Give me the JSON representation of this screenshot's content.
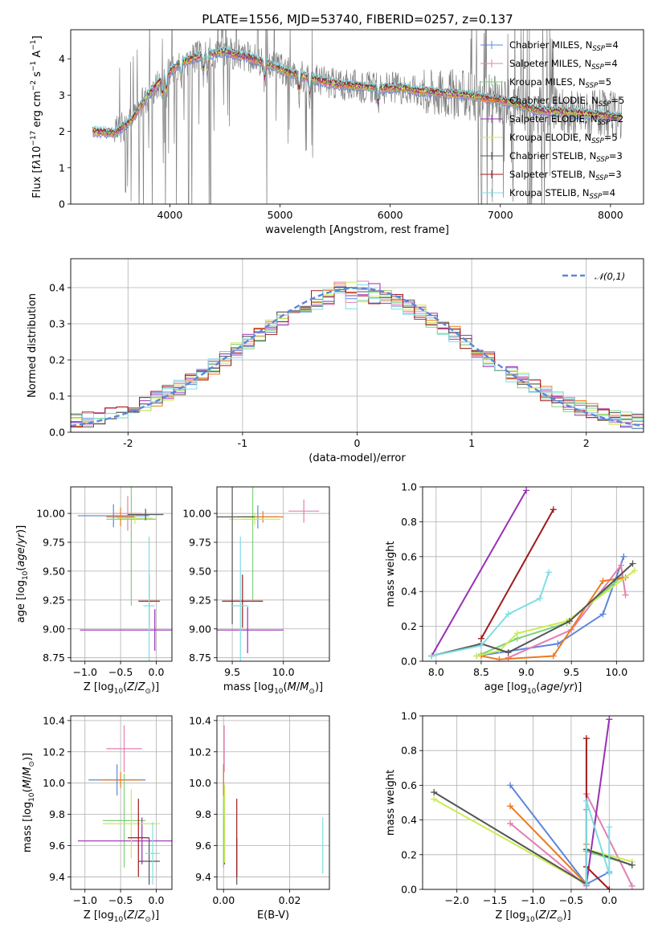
{
  "figure": {
    "title": "PLATE=1556, MJD=53740, FIBERID=0257, z=0.137"
  },
  "colors": {
    "chabrier_miles": "#5b86db",
    "salpeter_miles": "#e37fb0",
    "kroupa_miles": "#7fd17a",
    "chabrier_elodie": "#ec7a1e",
    "salpeter_elodie": "#9a2fb5",
    "kroupa_elodie": "#c9ec52",
    "chabrier_stelib": "#555555",
    "salpeter_stelib": "#a01a1a",
    "kroupa_stelib": "#7fdde3",
    "data": "#808080",
    "normal": "#5b86db",
    "fit_line_dark": "#5a7a5a"
  },
  "chart_data": [
    {
      "id": "spectrum",
      "type": "line",
      "title": "PLATE=1556, MJD=53740, FIBERID=0257, z=0.137",
      "xlabel": "wavelength [Angstrom, rest frame]",
      "ylabel_html": "Flux [f<tspan font-style='italic'>λ</tspan>10<tspan dy='-6' font-size='9'>−17</tspan><tspan dy='6'> erg cm</tspan><tspan dy='-6' font-size='9'>−2</tspan><tspan dy='6'> s</tspan><tspan dy='-6' font-size='9'>−1</tspan><tspan dy='6'> A</tspan><tspan dy='-6' font-size='9'>−1</tspan><tspan dy='6'>]</tspan>",
      "xlim": [
        3100,
        8300
      ],
      "ylim": [
        0,
        4.8
      ],
      "xticks": [
        4000,
        5000,
        6000,
        7000,
        8000
      ],
      "yticks": [
        0,
        1,
        2,
        3,
        4
      ],
      "continuum": {
        "x": [
          3300,
          3500,
          3650,
          3800,
          3950,
          4100,
          4300,
          4500,
          4700,
          4900,
          5100,
          5300,
          5500,
          5700,
          5900,
          6100,
          6300,
          6500,
          6700,
          6900,
          7100,
          7300,
          7500,
          7700,
          7900,
          8100
        ],
        "y": [
          2.0,
          1.95,
          2.3,
          3.0,
          3.5,
          3.9,
          4.1,
          4.2,
          4.05,
          3.85,
          3.6,
          3.45,
          3.3,
          3.25,
          3.2,
          3.2,
          3.1,
          3.05,
          3.0,
          2.9,
          2.8,
          2.6,
          2.55,
          2.5,
          2.45,
          2.4
        ]
      },
      "legend": [
        {
          "name": "Chabrier MILES",
          "nssp": "4",
          "color": "chabrier_miles"
        },
        {
          "name": "Salpeter MILES",
          "nssp": "4",
          "color": "salpeter_miles"
        },
        {
          "name": "Kroupa MILES",
          "nssp": "5",
          "color": "kroupa_miles"
        },
        {
          "name": "Chabrier ELODIE",
          "nssp": "5",
          "color": "chabrier_elodie"
        },
        {
          "name": "Salpeter ELODIE",
          "nssp": "2",
          "color": "salpeter_elodie"
        },
        {
          "name": "Kroupa ELODIE",
          "nssp": "5",
          "color": "kroupa_elodie"
        },
        {
          "name": "Chabrier STELIB",
          "nssp": "3",
          "color": "chabrier_stelib"
        },
        {
          "name": "Salpeter STELIB",
          "nssp": "3",
          "color": "salpeter_stelib"
        },
        {
          "name": "Kroupa STELIB",
          "nssp": "4",
          "color": "kroupa_stelib"
        }
      ],
      "legend_position": "top-right"
    },
    {
      "id": "residuals",
      "type": "histogram",
      "xlabel": "(data-model)/error",
      "ylabel": "Normed distribution",
      "xlim": [
        -2.5,
        2.5
      ],
      "ylim": [
        0,
        0.48
      ],
      "xticks": [
        -2,
        -1,
        0,
        1,
        2
      ],
      "yticks": [
        0.0,
        0.1,
        0.2,
        0.3,
        0.4
      ],
      "ytick_labels": [
        "0.0",
        "0.1",
        "0.2",
        "0.3",
        "0.4"
      ],
      "bin_width": 0.1,
      "reference": {
        "name": "𝒩(0,1)",
        "mean": 0,
        "sigma": 1
      },
      "legend_position": "top-right",
      "grid": true
    },
    {
      "id": "z_age",
      "type": "errorbar",
      "xlabel_html": "Z [log<tspan dy='4' font-size='9'>10</tspan><tspan dy='-4'>(</tspan><tspan font-style='italic'>Z</tspan>/<tspan font-style='italic'>Z</tspan><tspan dy='4' font-size='9'>⊙</tspan><tspan dy='-4'>)]</tspan>",
      "ylabel_html": "age  [log<tspan dy='4' font-size='9'>10</tspan><tspan dy='-4'>(</tspan><tspan font-style='italic'>age</tspan>/<tspan font-style='italic'>yr</tspan>)]",
      "xlim": [
        -1.2,
        0.22
      ],
      "ylim": [
        8.72,
        10.23
      ],
      "xticks": [
        -1.0,
        -0.5,
        0.0
      ],
      "xtick_labels": [
        "−1.0",
        "−0.5",
        "0.0"
      ],
      "yticks": [
        8.75,
        9.0,
        9.25,
        9.5,
        9.75,
        10.0
      ],
      "ytick_labels": [
        "8.75",
        "9.00",
        "9.25",
        "9.50",
        "9.75",
        "10.00"
      ],
      "points": [
        {
          "color": "chabrier_miles",
          "x": -0.6,
          "y": 9.98,
          "xerr": 0.5,
          "yerr": 0.1
        },
        {
          "color": "salpeter_miles",
          "x": -0.4,
          "y": 10.0,
          "xerr": 0.2,
          "yerr": 0.15
        },
        {
          "color": "kroupa_miles",
          "x": -0.35,
          "y": 9.95,
          "xerr": 0.35,
          "yerr": 0.75
        },
        {
          "color": "chabrier_elodie",
          "x": -0.5,
          "y": 9.97,
          "xerr": 0.2,
          "yerr": 0.08
        },
        {
          "color": "salpeter_elodie",
          "x": -0.02,
          "y": 8.99,
          "xerr": 1.05,
          "yerr": 0.18
        },
        {
          "color": "kroupa_elodie",
          "x": -0.3,
          "y": 9.96,
          "xerr": 0.25,
          "yerr": 0.05
        },
        {
          "color": "chabrier_stelib",
          "x": -0.15,
          "y": 9.99,
          "xerr": 0.25,
          "yerr": 0.05
        },
        {
          "color": "salpeter_stelib",
          "x": -0.1,
          "y": 9.24,
          "xerr": 0.15,
          "yerr": 0.23
        },
        {
          "color": "kroupa_stelib",
          "x": -0.1,
          "y": 9.2,
          "xerr": 0.08,
          "yerr": 0.6
        }
      ]
    },
    {
      "id": "mass_age",
      "type": "errorbar",
      "xlabel_html": "mass [log<tspan dy='4' font-size='9'>10</tspan><tspan dy='-4'>(</tspan><tspan font-style='italic'>M</tspan>/<tspan font-style='italic'>M</tspan><tspan dy='4' font-size='9'>⊙</tspan><tspan dy='-4'>)]</tspan>",
      "xlim": [
        9.35,
        10.45
      ],
      "ylim": [
        8.72,
        10.23
      ],
      "xticks": [
        9.5,
        10.0
      ],
      "xtick_labels": [
        "9.5",
        "10.0"
      ],
      "yticks": [
        8.75,
        9.0,
        9.25,
        9.5,
        9.75,
        10.0
      ],
      "ytick_labels": [
        "8.75",
        "9.00",
        "9.25",
        "9.50",
        "9.75",
        "10.00"
      ],
      "points": [
        {
          "color": "chabrier_miles",
          "x": 9.75,
          "y": 9.97,
          "xerr": 0.2,
          "yerr": 0.1
        },
        {
          "color": "salpeter_miles",
          "x": 10.2,
          "y": 10.02,
          "xerr": 0.15,
          "yerr": 0.1
        },
        {
          "color": "kroupa_miles",
          "x": 9.7,
          "y": 9.95,
          "xerr": 0.1,
          "yerr": 0.7
        },
        {
          "color": "chabrier_elodie",
          "x": 9.8,
          "y": 9.97,
          "xerr": 0.2,
          "yerr": 0.05
        },
        {
          "color": "salpeter_elodie",
          "x": 9.65,
          "y": 8.99,
          "xerr": 0.35,
          "yerr": 0.2
        },
        {
          "color": "kroupa_elodie",
          "x": 9.72,
          "y": 9.95,
          "xerr": 0.25,
          "yerr": 0.05
        },
        {
          "color": "chabrier_stelib",
          "x": 9.5,
          "y": 9.97,
          "xerr": 0.22,
          "yerr": 0.93
        },
        {
          "color": "salpeter_stelib",
          "x": 9.6,
          "y": 9.24,
          "xerr": 0.2,
          "yerr": 0.23
        },
        {
          "color": "kroupa_stelib",
          "x": 9.58,
          "y": 9.2,
          "xerr": 0.08,
          "yerr": 0.6
        }
      ]
    },
    {
      "id": "age_weight",
      "type": "line",
      "xlabel_html": "age  [log<tspan dy='4' font-size='9'>10</tspan><tspan dy='-4'>(</tspan><tspan font-style='italic'>age</tspan>/<tspan font-style='italic'>yr</tspan>)]",
      "ylabel": "mass weight",
      "xlim": [
        7.85,
        10.3
      ],
      "ylim": [
        0,
        1.0
      ],
      "xticks": [
        8.0,
        8.5,
        9.0,
        9.5,
        10.0
      ],
      "xtick_labels": [
        "8.0",
        "8.5",
        "9.0",
        "9.5",
        "10.0"
      ],
      "yticks": [
        0.0,
        0.2,
        0.4,
        0.6,
        0.8,
        1.0
      ],
      "ytick_labels": [
        "0.0",
        "0.2",
        "0.4",
        "0.6",
        "0.8",
        "1.0"
      ],
      "series": [
        {
          "color": "chabrier_miles",
          "x": [
            8.45,
            9.35,
            9.85,
            10.08
          ],
          "y": [
            0.03,
            0.1,
            0.27,
            0.6
          ]
        },
        {
          "color": "salpeter_miles",
          "x": [
            8.8,
            9.5,
            10.05,
            10.1
          ],
          "y": [
            0.02,
            0.18,
            0.55,
            0.38
          ]
        },
        {
          "color": "kroupa_miles",
          "x": [
            8.5,
            8.9,
            9.45,
            10.05
          ],
          "y": [
            0.04,
            0.13,
            0.22,
            0.48
          ]
        },
        {
          "color": "chabrier_elodie",
          "x": [
            8.5,
            8.7,
            9.3,
            9.85,
            10.1
          ],
          "y": [
            0.03,
            0.01,
            0.03,
            0.46,
            0.48
          ]
        },
        {
          "color": "salpeter_elodie",
          "x": [
            7.95,
            9.0
          ],
          "y": [
            0.03,
            0.98
          ]
        },
        {
          "color": "kroupa_elodie",
          "x": [
            8.45,
            8.7,
            8.9,
            9.45,
            10.2
          ],
          "y": [
            0.03,
            0.06,
            0.16,
            0.23,
            0.52
          ]
        },
        {
          "color": "chabrier_stelib",
          "x": [
            7.95,
            8.5,
            8.8,
            9.48,
            10.18
          ],
          "y": [
            0.03,
            0.1,
            0.05,
            0.23,
            0.56
          ]
        },
        {
          "color": "salpeter_stelib",
          "x": [
            8.5,
            9.3
          ],
          "y": [
            0.13,
            0.87
          ]
        },
        {
          "color": "kroupa_stelib",
          "x": [
            7.95,
            8.5,
            8.8,
            9.15,
            9.25
          ],
          "y": [
            0.03,
            0.09,
            0.27,
            0.36,
            0.51
          ]
        }
      ],
      "grid": true
    },
    {
      "id": "z_mass",
      "type": "errorbar",
      "xlabel_html": "Z [log<tspan dy='4' font-size='9'>10</tspan><tspan dy='-4'>(</tspan><tspan font-style='italic'>Z</tspan>/<tspan font-style='italic'>Z</tspan><tspan dy='4' font-size='9'>⊙</tspan><tspan dy='-4'>)]</tspan>",
      "ylabel_html": "mass [log<tspan dy='4' font-size='9'>10</tspan><tspan dy='-4'>(</tspan><tspan font-style='italic'>M</tspan>/<tspan font-style='italic'>M</tspan><tspan dy='4' font-size='9'>⊙</tspan><tspan dy='-4'>)]</tspan>",
      "xlim": [
        -1.2,
        0.22
      ],
      "ylim": [
        9.32,
        10.43
      ],
      "xticks": [
        -1.0,
        -0.5,
        0.0
      ],
      "xtick_labels": [
        "−1.0",
        "−0.5",
        "0.0"
      ],
      "yticks": [
        9.4,
        9.6,
        9.8,
        10.0,
        10.2,
        10.4
      ],
      "ytick_labels": [
        "9.4",
        "9.6",
        "9.8",
        "10.0",
        "10.2",
        "10.4"
      ],
      "points": [
        {
          "color": "chabrier_miles",
          "x": -0.55,
          "y": 10.02,
          "xerr": 0.4,
          "yerr": 0.1
        },
        {
          "color": "salpeter_miles",
          "x": -0.45,
          "y": 10.22,
          "xerr": 0.25,
          "yerr": 0.15
        },
        {
          "color": "kroupa_miles",
          "x": -0.45,
          "y": 9.76,
          "xerr": 0.3,
          "yerr": 0.3
        },
        {
          "color": "chabrier_elodie",
          "x": -0.5,
          "y": 10.02,
          "xerr": 0.3,
          "yerr": 0.05
        },
        {
          "color": "salpeter_elodie",
          "x": -0.2,
          "y": 9.63,
          "xerr": 0.9,
          "yerr": 0.15
        },
        {
          "color": "kroupa_elodie",
          "x": -0.35,
          "y": 9.74,
          "xerr": 0.4,
          "yerr": 0.22
        },
        {
          "color": "chabrier_stelib",
          "x": -0.1,
          "y": 9.5,
          "xerr": 0.15,
          "yerr": 0.15
        },
        {
          "color": "salpeter_stelib",
          "x": -0.25,
          "y": 9.65,
          "xerr": 0.15,
          "yerr": 0.25
        },
        {
          "color": "kroupa_stelib",
          "x": -0.05,
          "y": 9.55,
          "xerr": 0.1,
          "yerr": 0.2
        }
      ]
    },
    {
      "id": "ebv_mass",
      "type": "errorbar",
      "xlabel": "E(B-V)",
      "xlim": [
        -0.002,
        0.032
      ],
      "ylim": [
        9.32,
        10.43
      ],
      "xticks": [
        0.0,
        0.02
      ],
      "xtick_labels": [
        "0.00",
        "0.02"
      ],
      "yticks": [
        9.4,
        9.6,
        9.8,
        10.0,
        10.2,
        10.4
      ],
      "ytick_labels": [
        "9.4",
        "9.6",
        "9.8",
        "10.0",
        "10.2",
        "10.4"
      ],
      "points": [
        {
          "color": "chabrier_miles",
          "x": 0.0,
          "y": 10.02,
          "xerr": 0,
          "yerr": 0.1
        },
        {
          "color": "salpeter_miles",
          "x": 0.0002,
          "y": 10.22,
          "xerr": 0,
          "yerr": 0.15
        },
        {
          "color": "kroupa_miles",
          "x": 0.0,
          "y": 9.76,
          "xerr": 0,
          "yerr": 0.3
        },
        {
          "color": "chabrier_elodie",
          "x": 0.0,
          "y": 10.02,
          "xerr": 0,
          "yerr": 0.1
        },
        {
          "color": "salpeter_elodie",
          "x": 0.0003,
          "y": 9.63,
          "xerr": 0,
          "yerr": 0.15
        },
        {
          "color": "kroupa_elodie",
          "x": 0.0003,
          "y": 9.74,
          "xerr": 0,
          "yerr": 0.25
        },
        {
          "color": "chabrier_stelib",
          "x": 0.004,
          "y": 9.5,
          "xerr": 0,
          "yerr": 0.15
        },
        {
          "color": "salpeter_stelib",
          "x": 0.004,
          "y": 9.65,
          "xerr": 0,
          "yerr": 0.25
        },
        {
          "color": "kroupa_stelib",
          "x": 0.03,
          "y": 9.6,
          "xerr": 0,
          "yerr": 0.18
        }
      ]
    },
    {
      "id": "z_weight",
      "type": "line",
      "xlabel_html": "Z [log<tspan dy='4' font-size='9'>10</tspan><tspan dy='-4'>(</tspan><tspan font-style='italic'>Z</tspan>/<tspan font-style='italic'>Z</tspan><tspan dy='4' font-size='9'>⊙</tspan><tspan dy='-4'>)]</tspan>",
      "ylabel": "mass weight",
      "xlim": [
        -2.45,
        0.45
      ],
      "ylim": [
        0,
        1.0
      ],
      "xticks": [
        -2.0,
        -1.5,
        -1.0,
        -0.5,
        0.0
      ],
      "xtick_labels": [
        "−2.0",
        "−1.5",
        "−1.0",
        "−0.5",
        "0.0"
      ],
      "yticks": [
        0.0,
        0.2,
        0.4,
        0.6,
        0.8,
        1.0
      ],
      "ytick_labels": [
        "0.0",
        "0.2",
        "0.4",
        "0.6",
        "0.8",
        "1.0"
      ],
      "series": [
        {
          "color": "chabrier_miles",
          "x": [
            -1.3,
            -0.3,
            0.0
          ],
          "y": [
            0.6,
            0.03,
            0.1
          ]
        },
        {
          "color": "salpeter_miles",
          "x": [
            -1.3,
            -0.3,
            -0.3,
            0.3
          ],
          "y": [
            0.38,
            0.02,
            0.55,
            0.02
          ]
        },
        {
          "color": "kroupa_miles",
          "x": [
            -0.3,
            -0.3,
            0.3
          ],
          "y": [
            0.03,
            0.22,
            0.14
          ]
        },
        {
          "color": "chabrier_elodie",
          "x": [
            -1.3,
            -0.3,
            -0.3,
            -0.3
          ],
          "y": [
            0.48,
            0.03,
            0.46,
            0.26
          ]
        },
        {
          "color": "salpeter_elodie",
          "x": [
            -0.3,
            0.0
          ],
          "y": [
            0.03,
            0.98
          ]
        },
        {
          "color": "kroupa_elodie",
          "x": [
            -2.3,
            -0.3,
            -0.3,
            0.3
          ],
          "y": [
            0.52,
            0.03,
            0.23,
            0.16
          ]
        },
        {
          "color": "chabrier_stelib",
          "x": [
            -2.3,
            -0.3,
            -0.3,
            0.3
          ],
          "y": [
            0.56,
            0.03,
            0.23,
            0.14
          ]
        },
        {
          "color": "salpeter_stelib",
          "x": [
            -0.3,
            -0.3,
            0.0
          ],
          "y": [
            0.87,
            0.13,
            0.0
          ]
        },
        {
          "color": "kroupa_stelib",
          "x": [
            -0.3,
            -0.3,
            0.0,
            0.0
          ],
          "y": [
            0.03,
            0.51,
            0.09,
            0.36
          ]
        }
      ],
      "grid": true
    }
  ]
}
